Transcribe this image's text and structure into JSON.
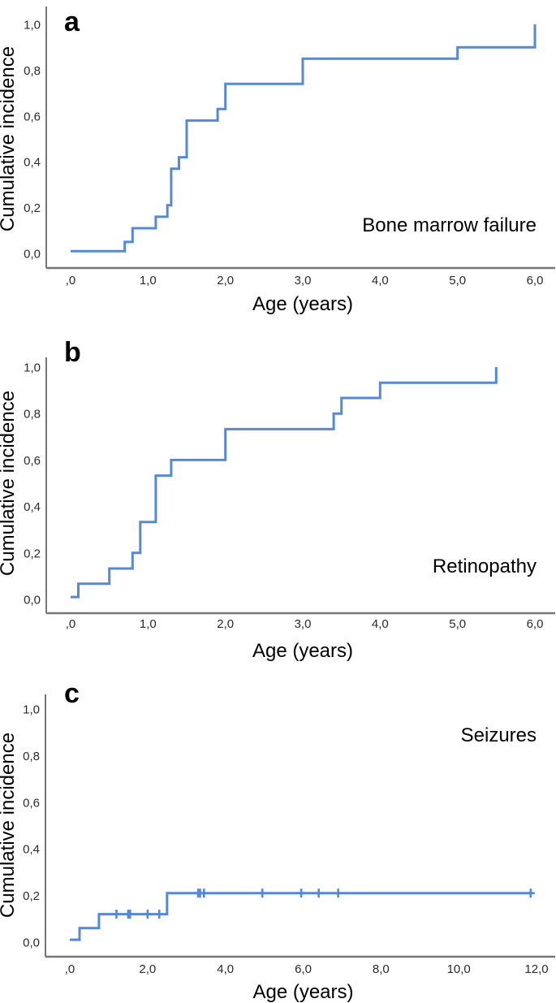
{
  "figure_title": "",
  "colors": {
    "curve": "#5589d8",
    "axis": "#767676",
    "label_text": "#000000",
    "tick_text": "#2b2b2b"
  },
  "chart_data": [
    {
      "id": "a",
      "type": "line",
      "subtype": "kaplan-meier-step",
      "panel_letter": "a",
      "annotation": "Bone marrow failure",
      "xlabel": "Age (years)",
      "ylabel": "Cumulative incidence",
      "xlim": [
        0,
        6.3
      ],
      "ylim": [
        0,
        1.05
      ],
      "grid": false,
      "legend": "none",
      "x_tick_values": [
        0,
        1,
        2,
        3,
        4,
        5,
        6
      ],
      "x_tick_labels": [
        ",0",
        "1,0",
        "2,0",
        "3,0",
        "4,0",
        "5,0",
        "6,0"
      ],
      "y_tick_values": [
        0,
        0.2,
        0.4,
        0.6,
        0.8,
        1.0
      ],
      "y_tick_labels": [
        "0,0",
        "0,2",
        "0,4",
        "0,6",
        "0,8",
        "1,0"
      ],
      "start": [
        0,
        0.01
      ],
      "events": [
        [
          0.7,
          0.05
        ],
        [
          0.8,
          0.11
        ],
        [
          1.1,
          0.16
        ],
        [
          1.25,
          0.21
        ],
        [
          1.3,
          0.37
        ],
        [
          1.4,
          0.42
        ],
        [
          1.5,
          0.58
        ],
        [
          1.9,
          0.63
        ],
        [
          2.0,
          0.74
        ],
        [
          3.0,
          0.85
        ],
        [
          5.0,
          0.9
        ],
        [
          6.0,
          1.0
        ]
      ],
      "end_x": 6.0,
      "censor_marks": []
    },
    {
      "id": "b",
      "type": "line",
      "subtype": "kaplan-meier-step",
      "panel_letter": "b",
      "annotation": "Retinopathy",
      "xlabel": "Age (years)",
      "ylabel": "Cumulative incidence",
      "xlim": [
        0,
        6.3
      ],
      "ylim": [
        0,
        1.05
      ],
      "grid": false,
      "legend": "none",
      "x_tick_values": [
        0,
        1,
        2,
        3,
        4,
        5,
        6
      ],
      "x_tick_labels": [
        ",0",
        "1,0",
        "2,0",
        "3,0",
        "4,0",
        "5,0",
        "6,0"
      ],
      "y_tick_values": [
        0,
        0.2,
        0.4,
        0.6,
        0.8,
        1.0
      ],
      "y_tick_labels": [
        "0,0",
        "0,2",
        "0,4",
        "0,6",
        "0,8",
        "1,0"
      ],
      "start": [
        0,
        0.01
      ],
      "events": [
        [
          0.1,
          0.067
        ],
        [
          0.5,
          0.133
        ],
        [
          0.8,
          0.2
        ],
        [
          0.9,
          0.333
        ],
        [
          1.1,
          0.533
        ],
        [
          1.3,
          0.6
        ],
        [
          2.0,
          0.733
        ],
        [
          3.4,
          0.8
        ],
        [
          3.5,
          0.867
        ],
        [
          4.0,
          0.933
        ],
        [
          5.5,
          1.0
        ]
      ],
      "end_x": 5.5,
      "censor_marks": []
    },
    {
      "id": "c",
      "type": "line",
      "subtype": "kaplan-meier-step",
      "panel_letter": "c",
      "annotation": "Seizures",
      "xlabel": "Age (years)",
      "ylabel": "Cumulative incidence",
      "xlim": [
        0,
        12.6
      ],
      "ylim": [
        0,
        1.05
      ],
      "grid": false,
      "legend": "none",
      "x_tick_values": [
        0,
        2,
        4,
        6,
        8,
        10,
        12
      ],
      "x_tick_labels": [
        ",0",
        "2,0",
        "4,0",
        "6,0",
        "8,0",
        "10,0",
        "12,0"
      ],
      "y_tick_values": [
        0,
        0.2,
        0.4,
        0.6,
        0.8,
        1.0
      ],
      "y_tick_labels": [
        "0,0",
        "0,2",
        "0,4",
        "0,6",
        "0,8",
        "1,0"
      ],
      "start": [
        0,
        0.01
      ],
      "events": [
        [
          0.25,
          0.06
        ],
        [
          0.75,
          0.12
        ],
        [
          2.5,
          0.21
        ]
      ],
      "end_x": 11.9,
      "censor_marks": [
        [
          1.2,
          0.12
        ],
        [
          1.5,
          0.12
        ],
        [
          1.55,
          0.12
        ],
        [
          2.0,
          0.12
        ],
        [
          2.3,
          0.12
        ],
        [
          3.3,
          0.21
        ],
        [
          3.35,
          0.21
        ],
        [
          3.45,
          0.21
        ],
        [
          4.95,
          0.21
        ],
        [
          5.95,
          0.21
        ],
        [
          6.4,
          0.21
        ],
        [
          6.9,
          0.21
        ],
        [
          11.85,
          0.21
        ]
      ]
    }
  ]
}
